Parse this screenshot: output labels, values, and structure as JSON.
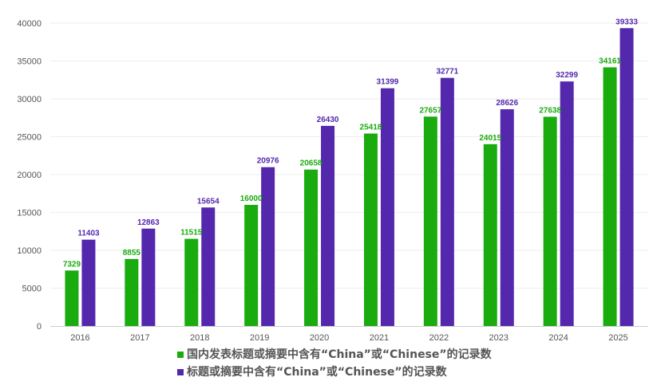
{
  "chart_data": {
    "type": "bar",
    "categories": [
      "2016",
      "2017",
      "2018",
      "2019",
      "2020",
      "2021",
      "2022",
      "2023",
      "2024",
      "2025"
    ],
    "series": [
      {
        "name": "国内发表标题或摘要中含有“China”或“Chinese”的记录数",
        "color": "#1aab0f",
        "values": [
          7329,
          8855,
          11515,
          16000,
          20658,
          25418,
          27657,
          24015,
          27638,
          34161
        ]
      },
      {
        "name": "标题或摘要中含有“China”或“Chinese”的记录数",
        "color": "#5428ad",
        "values": [
          11403,
          12863,
          15654,
          20976,
          26430,
          31399,
          32771,
          28626,
          32299,
          39333
        ]
      }
    ],
    "ylim": [
      0,
      40000
    ],
    "yticks": [
      "0",
      "5000",
      "10000",
      "15000",
      "20000",
      "25000",
      "30000",
      "35000",
      "40000"
    ],
    "grid": true,
    "legend_position": "bottom",
    "data_labels": true
  }
}
